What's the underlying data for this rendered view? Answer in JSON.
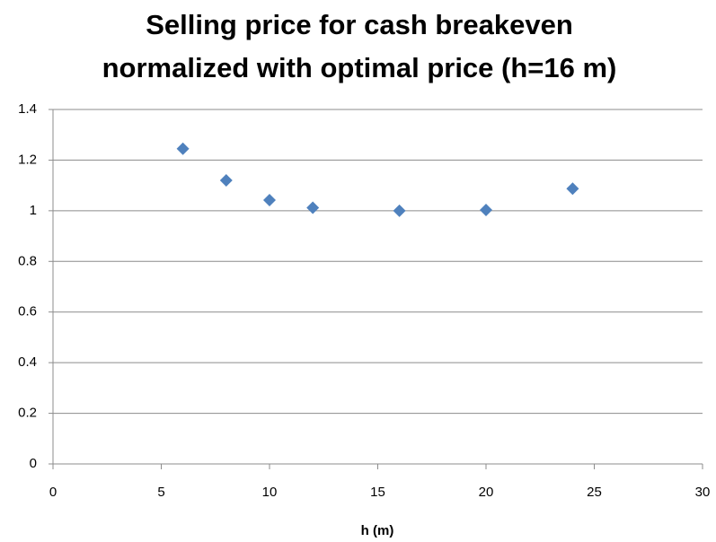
{
  "chart_data": {
    "type": "scatter",
    "title": [
      "Selling price for cash breakeven",
      "normalized with optimal price (h=16 m)"
    ],
    "x_label": "h (m)",
    "x": [
      6,
      8,
      10,
      12,
      16,
      20,
      24
    ],
    "values": [
      1.245,
      1.12,
      1.042,
      1.012,
      1.0,
      1.003,
      1.087
    ],
    "color": "#4f81bd",
    "xlim": [
      0,
      30
    ],
    "xticks": [
      0,
      5,
      10,
      15,
      20,
      25,
      30
    ],
    "ylim": [
      0,
      1.4
    ],
    "yticks": [
      0,
      0.2,
      0.4,
      0.6,
      0.8,
      1,
      1.2,
      1.4
    ],
    "grid": true
  }
}
